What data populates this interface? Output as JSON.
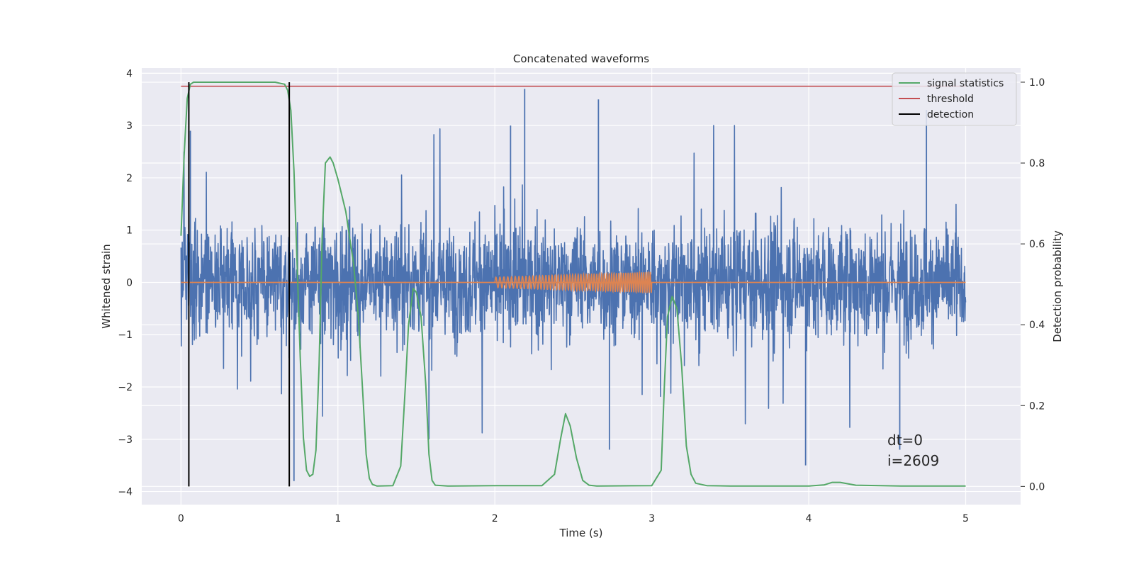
{
  "chart_data": {
    "type": "line",
    "title": "Concatenated waveforms",
    "xlabel": "Time (s)",
    "ylabel": "Whitened strain",
    "ylabel_right": "Detection probability",
    "xlim": [
      -0.25,
      5.35
    ],
    "ylim": [
      -4.25,
      4.1
    ],
    "ylim_right": [
      -0.045,
      1.035
    ],
    "x_ticks": [
      0,
      1,
      2,
      3,
      4,
      5
    ],
    "y_ticks": [
      -4,
      -3,
      -2,
      -1,
      0,
      1,
      2,
      3,
      4
    ],
    "y_ticks_right": [
      0.0,
      0.2,
      0.4,
      0.6,
      0.8,
      1.0
    ],
    "grid": true,
    "legend_position": "top-right",
    "colors": {
      "strain": "#4c72b0",
      "template": "#dd8452",
      "signal_statistics": "#55a868",
      "threshold": "#c44e52",
      "detection": "#000000",
      "plot_bg": "#eaeaf2"
    },
    "legend": [
      {
        "name": "signal statistics",
        "color": "#55a868"
      },
      {
        "name": "threshold",
        "color": "#c44e52"
      },
      {
        "name": "detection",
        "color": "#000000"
      }
    ],
    "series": [
      {
        "name": "signal statistics",
        "axis": "right",
        "x": [
          0.0,
          0.02,
          0.04,
          0.06,
          0.08,
          0.1,
          0.2,
          0.4,
          0.6,
          0.66,
          0.68,
          0.7,
          0.72,
          0.74,
          0.76,
          0.78,
          0.8,
          0.82,
          0.84,
          0.86,
          0.88,
          0.9,
          0.92,
          0.95,
          0.97,
          1.0,
          1.05,
          1.1,
          1.13,
          1.16,
          1.18,
          1.2,
          1.22,
          1.25,
          1.35,
          1.4,
          1.43,
          1.45,
          1.48,
          1.5,
          1.53,
          1.56,
          1.58,
          1.6,
          1.62,
          1.7,
          2.0,
          2.3,
          2.38,
          2.42,
          2.45,
          2.48,
          2.52,
          2.56,
          2.6,
          2.65,
          3.0,
          3.06,
          3.08,
          3.1,
          3.13,
          3.16,
          3.19,
          3.22,
          3.25,
          3.28,
          3.35,
          3.5,
          4.0,
          4.1,
          4.15,
          4.2,
          4.3,
          4.6,
          5.0
        ],
        "values": [
          0.62,
          0.82,
          0.96,
          0.995,
          1.0,
          1.0,
          1.0,
          1.0,
          1.0,
          0.995,
          0.98,
          0.93,
          0.78,
          0.55,
          0.32,
          0.12,
          0.04,
          0.025,
          0.03,
          0.09,
          0.3,
          0.62,
          0.8,
          0.815,
          0.8,
          0.76,
          0.68,
          0.55,
          0.42,
          0.22,
          0.08,
          0.02,
          0.005,
          0.001,
          0.002,
          0.05,
          0.25,
          0.4,
          0.49,
          0.48,
          0.42,
          0.25,
          0.08,
          0.015,
          0.003,
          0.001,
          0.002,
          0.002,
          0.03,
          0.12,
          0.18,
          0.15,
          0.07,
          0.015,
          0.003,
          0.001,
          0.002,
          0.04,
          0.25,
          0.42,
          0.47,
          0.44,
          0.3,
          0.1,
          0.03,
          0.008,
          0.002,
          0.001,
          0.001,
          0.004,
          0.01,
          0.01,
          0.003,
          0.001,
          0.001
        ]
      },
      {
        "name": "threshold",
        "axis": "right",
        "x": [
          0.0,
          5.0
        ],
        "values": [
          0.99,
          0.99
        ]
      },
      {
        "name": "detection",
        "axis": "right",
        "x": [
          0.05,
          0.69
        ],
        "y_range": [
          0.0,
          1.0
        ]
      },
      {
        "name": "whitened strain",
        "axis": "left",
        "x_range": [
          0.0,
          5.0
        ],
        "typical_amplitude": 0.75,
        "peak_spikes": [
          {
            "x": 2.19,
            "y": 3.7
          },
          {
            "x": 2.66,
            "y": 3.5
          },
          {
            "x": 4.75,
            "y": 3.3
          },
          {
            "x": 2.1,
            "y": 3.0
          },
          {
            "x": 0.06,
            "y": 2.9
          },
          {
            "x": 0.72,
            "y": -3.8
          },
          {
            "x": 3.98,
            "y": -3.5
          },
          {
            "x": 4.58,
            "y": -3.2
          },
          {
            "x": 1.58,
            "y": -3.0
          },
          {
            "x": 2.73,
            "y": -3.2
          }
        ]
      },
      {
        "name": "template",
        "axis": "left",
        "x_range": [
          2.0,
          3.0
        ],
        "amplitude_start": 0.1,
        "amplitude_end": 0.2
      }
    ],
    "annotations": [
      {
        "text": "dt=0"
      },
      {
        "text": "i=2609"
      }
    ]
  }
}
